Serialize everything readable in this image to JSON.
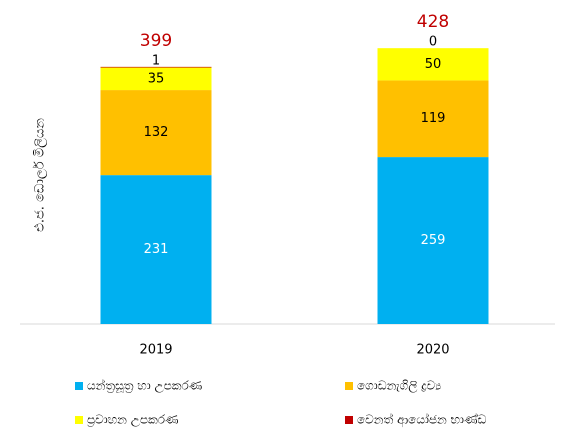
{
  "chart_data": {
    "type": "stacked_bar",
    "y_axis_label": "එ.ජ. ඩොලර් මිලියන",
    "categories": [
      "2019",
      "2020"
    ],
    "series": [
      {
        "name": "යන්ත්‍රසූත්‍ර හා උපකරණ",
        "color": "#00b0f0",
        "values": [
          231,
          259
        ]
      },
      {
        "name": "ගොඩනැගිලි ද්‍රව්‍ය",
        "color": "#ffc000",
        "values": [
          132,
          119
        ]
      },
      {
        "name": "ප්‍රවාහන උපකරණ",
        "color": "#ffff00",
        "values": [
          35,
          50
        ]
      },
      {
        "name": "වෙනත් ආයෝජන භාණ්ඩ",
        "color": "#c00000",
        "values": [
          1,
          0
        ]
      }
    ],
    "totals": [
      399,
      428
    ],
    "ylim": [
      0,
      450
    ]
  }
}
